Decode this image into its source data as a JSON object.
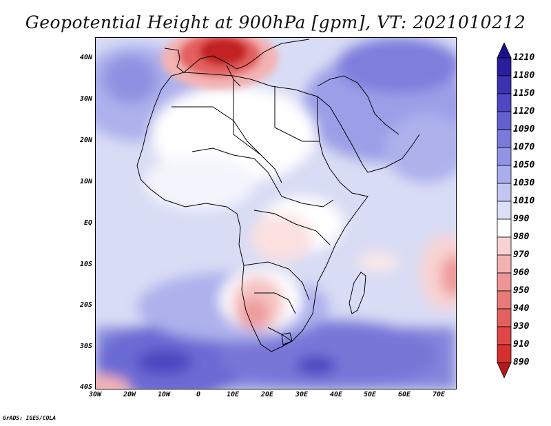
{
  "title": "Geopotential Height at 900hPa [gpm], VT: 2021010212",
  "map": {
    "variable": "Geopotential Height",
    "level": "900hPa",
    "units": "gpm",
    "valid_time": "2021010212",
    "region": "Africa, Arabian Peninsula, Middle East"
  },
  "axes": {
    "lat_labels": [
      "40N",
      "30N",
      "20N",
      "10N",
      "EQ",
      "10S",
      "20S",
      "30S",
      "40S"
    ],
    "lon_labels": [
      "30W",
      "20W",
      "10W",
      "0",
      "10E",
      "20E",
      "30E",
      "40E",
      "50E",
      "60E",
      "70E"
    ]
  },
  "colorbar": {
    "levels": [
      "1210",
      "1180",
      "1150",
      "1120",
      "1090",
      "1070",
      "1050",
      "1030",
      "1010",
      "990",
      "980",
      "970",
      "960",
      "950",
      "940",
      "930",
      "910",
      "890"
    ],
    "colors": {
      "top_arrow": "#1c0f8c",
      "boxes": [
        "#2a1e9c",
        "#3c32b0",
        "#4f48c2",
        "#6460d0",
        "#7b7adb",
        "#9293e3",
        "#aaacec",
        "#c3c6f3",
        "#dcdff8",
        "#ffffff",
        "#f9d3d3",
        "#f3b3b3",
        "#ee9696",
        "#e97a7a",
        "#e46060",
        "#df4747",
        "#d62f2f"
      ],
      "bottom_arrow": "#b41a1a"
    }
  },
  "footer": "GrADS: IGES/COLA"
}
